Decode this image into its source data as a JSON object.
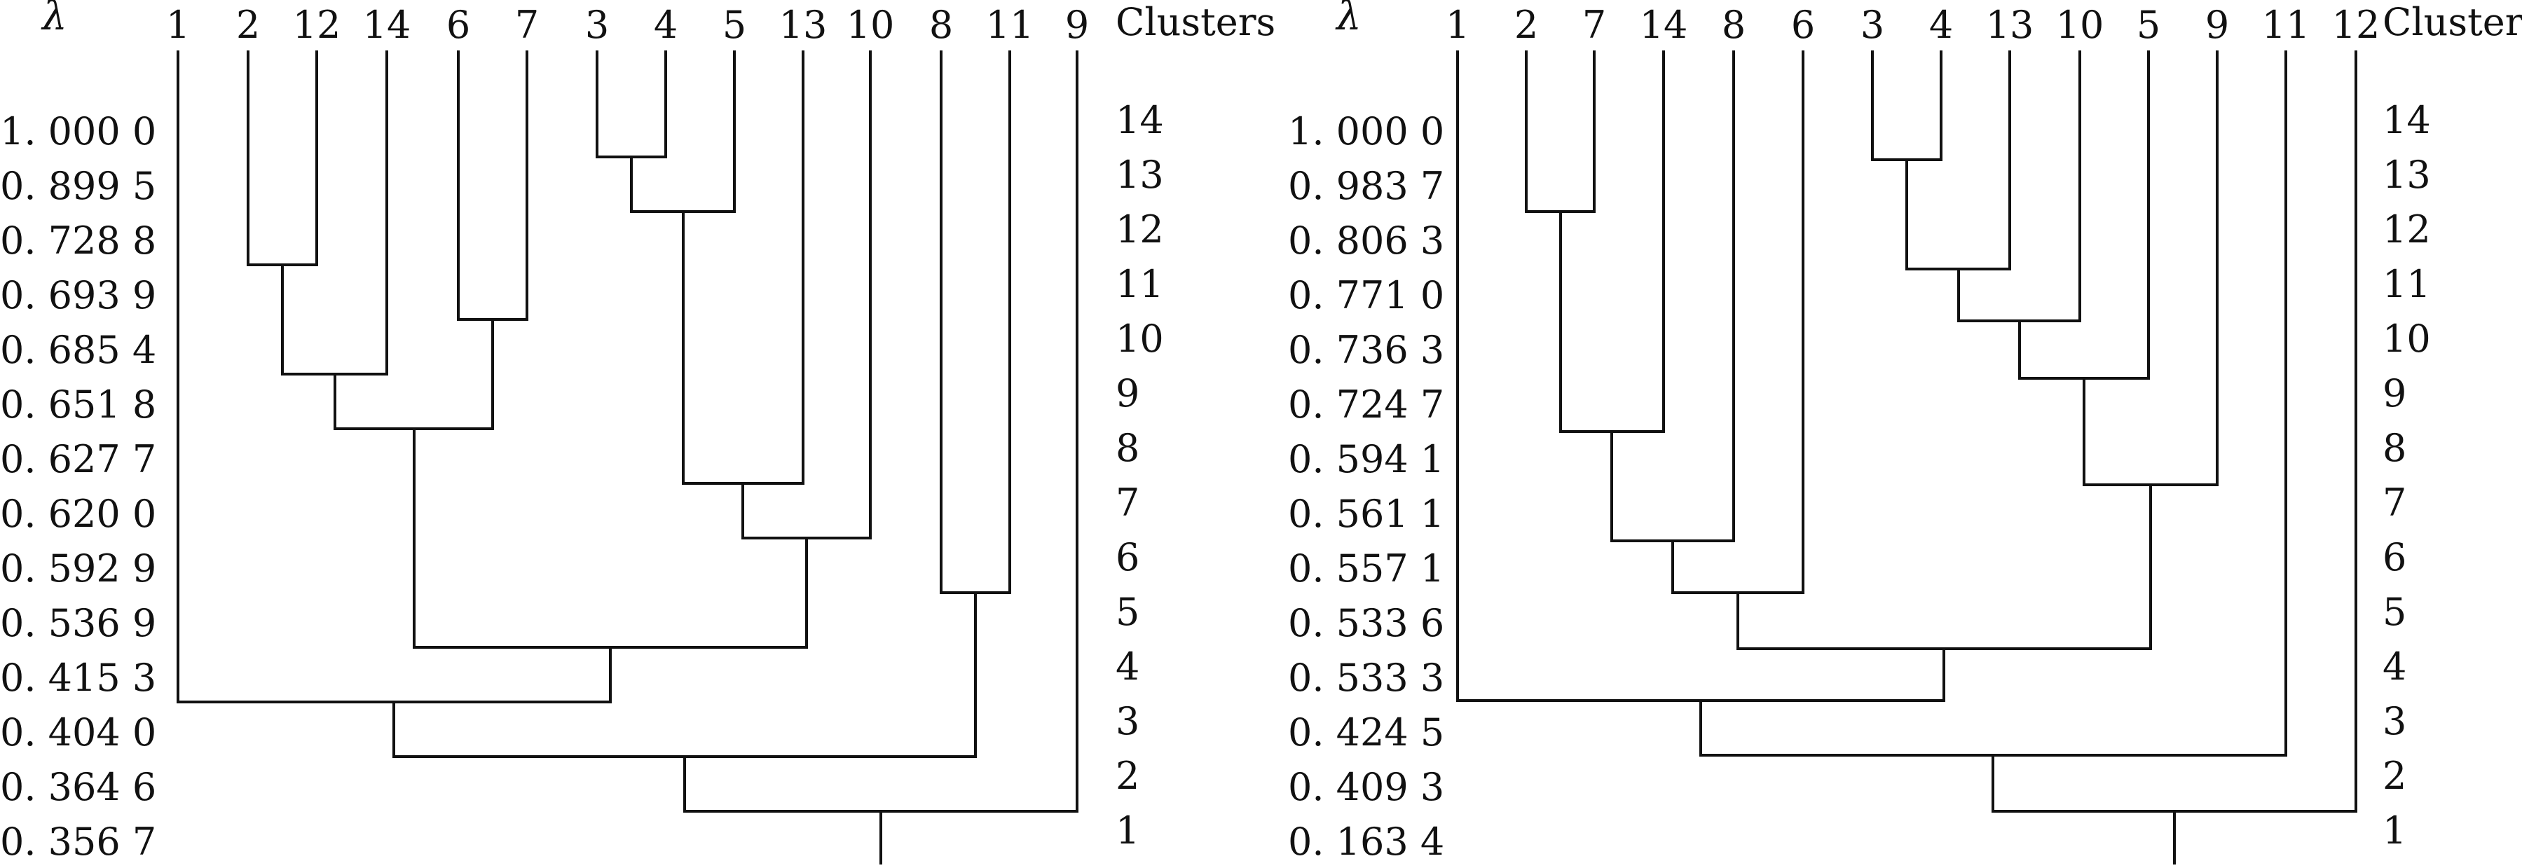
{
  "panels": [
    {
      "lambda_header": "λ",
      "clusters_header": "Clusters",
      "leaf_order": [
        "1",
        "2",
        "12",
        "14",
        "6",
        "7",
        "3",
        "4",
        "5",
        "13",
        "10",
        "8",
        "11",
        "9"
      ],
      "lambda_values": [
        "1. 000 0",
        "0. 899 5",
        "0. 728 8",
        "0. 693 9",
        "0. 685 4",
        "0. 651 8",
        "0. 627 7",
        "0. 620 0",
        "0. 592 9",
        "0. 536 9",
        "0. 415 3",
        "0. 404 0",
        "0. 364 6",
        "0. 356 7"
      ],
      "cluster_counts": [
        "14",
        "13",
        "12",
        "11",
        "10",
        "9",
        "8",
        "7",
        "6",
        "5",
        "4",
        "3",
        "2",
        "1"
      ]
    },
    {
      "lambda_header": "λ",
      "clusters_header": "Clusters",
      "leaf_order": [
        "1",
        "2",
        "7",
        "14",
        "8",
        "6",
        "3",
        "4",
        "13",
        "10",
        "5",
        "9",
        "11",
        "12"
      ],
      "lambda_values": [
        "1. 000 0",
        "0. 983 7",
        "0. 806 3",
        "0. 771 0",
        "0. 736 3",
        "0. 724 7",
        "0. 594 1",
        "0. 561 1",
        "0. 557 1",
        "0. 533 6",
        "0. 533 3",
        "0. 424 5",
        "0. 409 3",
        "0. 163 4"
      ],
      "cluster_counts": [
        "14",
        "13",
        "12",
        "11",
        "10",
        "9",
        "8",
        "7",
        "6",
        "5",
        "4",
        "3",
        "2",
        "1"
      ]
    }
  ]
}
